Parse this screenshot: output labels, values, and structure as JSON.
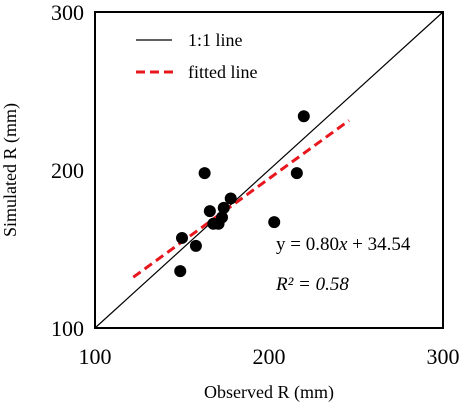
{
  "chart_data": {
    "type": "scatter",
    "xlabel": "Observed R (mm)",
    "ylabel": "Simulated R (mm)",
    "xlim": [
      100,
      300
    ],
    "ylim": [
      100,
      300
    ],
    "x_ticks": [
      "100",
      "200",
      "300"
    ],
    "y_ticks": [
      "100",
      "200",
      "300"
    ],
    "grid": false,
    "legend_position": "top-left",
    "legend": [
      {
        "label": "1:1 line",
        "style": "solid",
        "color": "#000000"
      },
      {
        "label": "fitted line",
        "style": "dashed",
        "color": "#e8171d"
      }
    ],
    "points": [
      {
        "x": 149,
        "y": 136
      },
      {
        "x": 150,
        "y": 157
      },
      {
        "x": 158,
        "y": 152
      },
      {
        "x": 163,
        "y": 198
      },
      {
        "x": 166,
        "y": 174
      },
      {
        "x": 168,
        "y": 166
      },
      {
        "x": 171,
        "y": 166
      },
      {
        "x": 173,
        "y": 170
      },
      {
        "x": 174,
        "y": 176
      },
      {
        "x": 178,
        "y": 182
      },
      {
        "x": 203,
        "y": 167
      },
      {
        "x": 216,
        "y": 198
      },
      {
        "x": 220,
        "y": 234
      }
    ],
    "one_to_one": {
      "from": [
        100,
        100
      ],
      "to": [
        300,
        300
      ]
    },
    "fit": {
      "slope": 0.8,
      "intercept": 34.54,
      "x_range": [
        122,
        246
      ]
    },
    "equation_prefix": "y = 0.80",
    "equation_var": "x",
    "equation_suffix": " + 34.54",
    "r2_label": "R² = 0.58",
    "colors": {
      "points": "#000000",
      "fit_line": "#e8171d",
      "one_to_one": "#000000"
    }
  }
}
